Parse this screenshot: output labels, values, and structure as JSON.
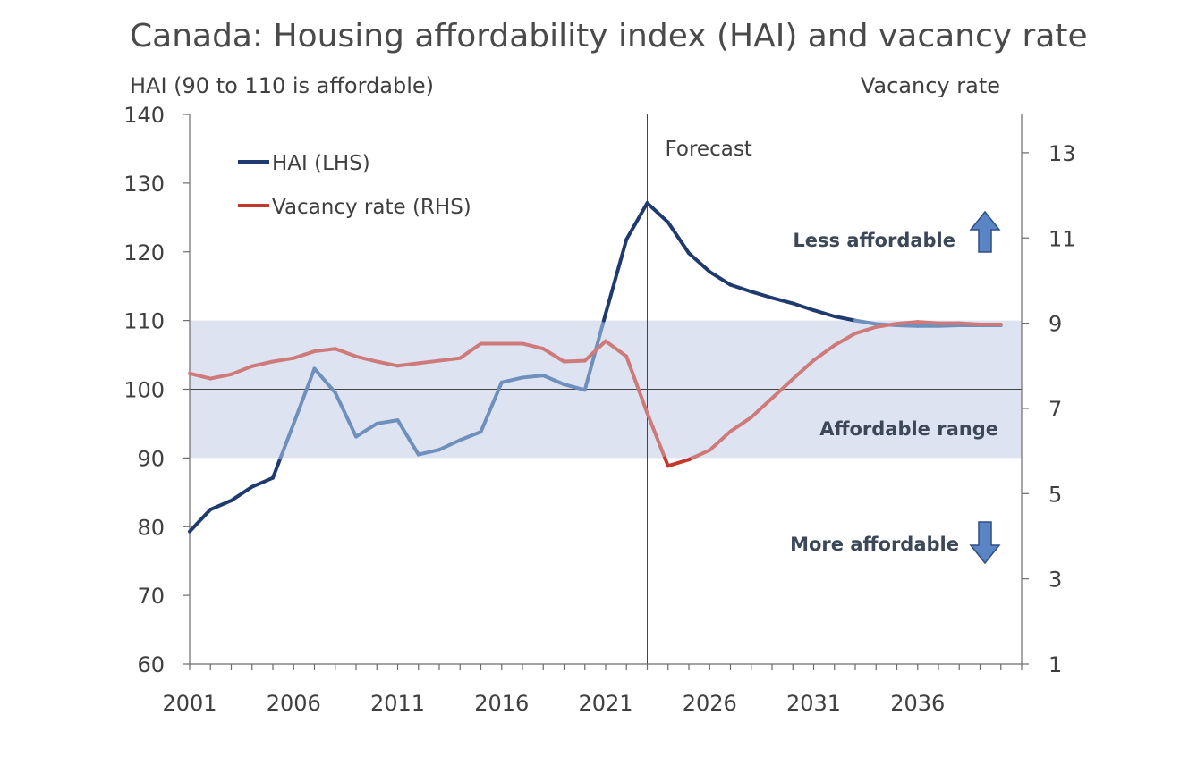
{
  "chart_data": {
    "type": "line",
    "title": "Canada: Housing affordability index (HAI) and vacancy rate",
    "ylabel_left": "HAI (90 to 110 is affordable)",
    "ylabel_right": "Vacancy rate",
    "x": [
      2001,
      2002,
      2003,
      2004,
      2005,
      2006,
      2007,
      2008,
      2009,
      2010,
      2011,
      2012,
      2013,
      2014,
      2015,
      2016,
      2017,
      2018,
      2019,
      2020,
      2021,
      2022,
      2023,
      2024,
      2025,
      2026,
      2027,
      2028,
      2029,
      2030,
      2031,
      2032,
      2033,
      2034,
      2035,
      2036,
      2037,
      2038,
      2039,
      2040
    ],
    "x_ticks": [
      2001,
      2006,
      2011,
      2016,
      2021,
      2026,
      2031,
      2036
    ],
    "x_range": [
      2001,
      2041
    ],
    "y_left_range": [
      60,
      140
    ],
    "y_left_ticks": [
      60,
      70,
      80,
      90,
      100,
      110,
      120,
      130,
      140
    ],
    "y_right_range": [
      1,
      13.9
    ],
    "y_right_ticks": [
      1,
      3,
      5,
      7,
      9,
      11,
      13
    ],
    "affordable_band": [
      90,
      110
    ],
    "reference_line": 100,
    "forecast_start": 2023,
    "series": [
      {
        "name": "HAI (LHS)",
        "axis": "left",
        "color": "#1f3a6e",
        "values": [
          79.3,
          82.5,
          83.8,
          85.8,
          87.1,
          95.0,
          103.0,
          99.5,
          93.1,
          95.0,
          95.5,
          90.5,
          91.2,
          92.6,
          93.8,
          101.0,
          101.7,
          102.0,
          100.7,
          99.9,
          111.0,
          121.8,
          127.1,
          124.3,
          119.8,
          117.1,
          115.2,
          114.2,
          113.3,
          112.5,
          111.5,
          110.6,
          110.0,
          109.5,
          109.3,
          109.2,
          109.2,
          109.3,
          109.3,
          109.3
        ]
      },
      {
        "name": "Vacancy rate (RHS)",
        "axis": "right",
        "color": "#c0392b",
        "values": [
          7.82,
          7.7,
          7.8,
          7.99,
          8.1,
          8.18,
          8.34,
          8.4,
          8.22,
          8.1,
          8.0,
          8.06,
          8.12,
          8.18,
          8.52,
          8.52,
          8.52,
          8.4,
          8.1,
          8.12,
          8.58,
          8.22,
          6.89,
          5.65,
          5.8,
          6.02,
          6.46,
          6.79,
          7.24,
          7.69,
          8.13,
          8.48,
          8.76,
          8.91,
          8.99,
          9.03,
          9.0,
          9.0,
          8.97,
          8.97
        ]
      }
    ],
    "annotations": {
      "forecast": "Forecast",
      "less_affordable": "Less affordable",
      "affordable_range": "Affordable range",
      "more_affordable": "More affordable"
    },
    "legend_position": "top-left",
    "grid": false
  },
  "colors": {
    "band": "#dde3f0",
    "axis": "#6b6b6b",
    "hai_faded": "#6f8fbd",
    "vacancy_faded": "#cf7a7a",
    "arrow_fill": "#5b84c4",
    "arrow_stroke": "#2e4f85",
    "annotation_text": "#3c4858"
  }
}
